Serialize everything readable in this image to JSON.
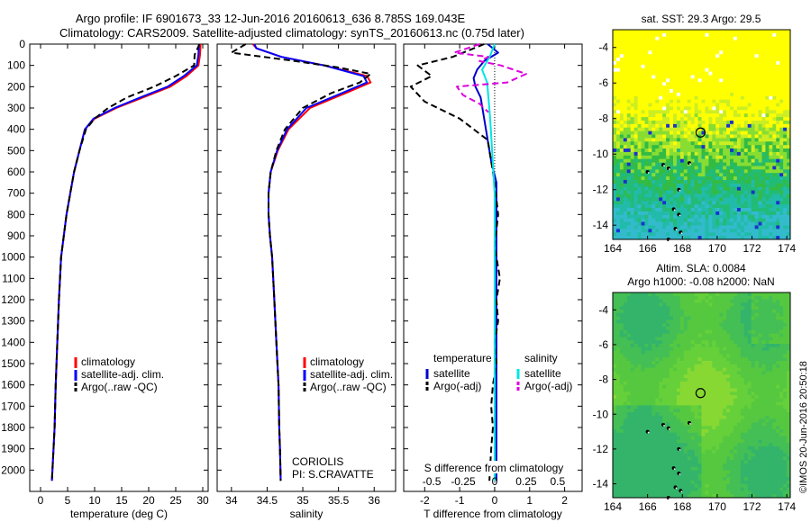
{
  "header": {
    "line1": "Argo profile: IF 6901673_33 12-Jun-2016 20160613_636 8.785S 169.043E",
    "line2": "Climatology: CARS2009. Satellite-adjusted climatology: synTS_20160613.nc (0.75d later)"
  },
  "chart_data": [
    {
      "type": "line",
      "id": "temperature",
      "xlabel": "temperature (deg C)",
      "ylabel": "",
      "xlim": [
        -2,
        31
      ],
      "ylim": [
        2100,
        0
      ],
      "xticks": [
        0,
        5,
        10,
        15,
        20,
        25,
        30
      ],
      "yticks": [
        0,
        100,
        200,
        300,
        400,
        500,
        600,
        700,
        800,
        900,
        1000,
        1100,
        1200,
        1300,
        1400,
        1500,
        1600,
        1700,
        1800,
        1900,
        2000
      ],
      "legend": [
        "climatology",
        "satellite-adj. clim.",
        "Argo(..raw -QC)"
      ],
      "series": [
        {
          "name": "climatology",
          "color": "#ff0000",
          "style": "solid",
          "x": [
            29.6,
            29.5,
            29.2,
            27.0,
            24.0,
            19.0,
            14.0,
            10.0,
            8.2,
            7.2,
            6.2,
            5.5,
            4.8,
            4.3,
            3.8,
            3.4,
            3.1,
            2.8,
            2.6,
            2.4,
            2.2,
            2.1
          ],
          "y": [
            0,
            50,
            100,
            150,
            200,
            250,
            300,
            350,
            400,
            500,
            600,
            700,
            800,
            900,
            1000,
            1200,
            1400,
            1600,
            1800,
            1900,
            2000,
            2050
          ]
        },
        {
          "name": "satellite-adj. clim.",
          "color": "#0000ff",
          "style": "solid",
          "x": [
            29.3,
            29.2,
            28.9,
            26.5,
            23.5,
            18.5,
            13.7,
            9.8,
            8.2,
            7.2,
            6.2,
            5.5,
            4.8,
            4.3,
            3.8,
            3.4,
            3.1,
            2.8,
            2.6,
            2.4,
            2.2,
            2.1
          ],
          "y": [
            0,
            50,
            100,
            150,
            200,
            250,
            300,
            350,
            400,
            500,
            600,
            700,
            800,
            900,
            1000,
            1200,
            1400,
            1600,
            1800,
            1900,
            2000,
            2050
          ]
        },
        {
          "name": "Argo(..raw -QC)",
          "color": "#000000",
          "style": "dashed",
          "x": [
            29.4,
            28.5,
            28.4,
            25.0,
            21.0,
            16.0,
            12.5,
            10.0,
            8.4,
            7.2,
            6.2,
            5.5,
            4.8,
            4.3,
            3.8,
            3.4,
            3.1,
            2.8,
            2.6,
            2.4,
            2.2,
            2.1
          ],
          "y": [
            0,
            50,
            100,
            150,
            200,
            250,
            300,
            350,
            400,
            500,
            600,
            700,
            800,
            900,
            1000,
            1200,
            1400,
            1600,
            1800,
            1900,
            2000,
            2050
          ]
        }
      ]
    },
    {
      "type": "line",
      "id": "salinity",
      "xlabel": "salinity",
      "xlim": [
        33.8,
        36.3
      ],
      "ylim": [
        2100,
        0
      ],
      "xticks": [
        34,
        34.5,
        35,
        35.5,
        36
      ],
      "xticklabels": [
        "34",
        "34.5",
        "35",
        "35.5",
        "36"
      ],
      "legend": [
        "climatology",
        "satellite-adj. clim.",
        "Argo(..raw -QC)"
      ],
      "annotation": [
        "CORIOLIS",
        "PI: S.CRAVATTE"
      ],
      "series": [
        {
          "name": "climatology",
          "color": "#ff0000",
          "style": "solid",
          "x": [
            34.3,
            34.35,
            34.7,
            35.3,
            35.9,
            35.95,
            35.6,
            35.1,
            34.8,
            34.65,
            34.55,
            34.52,
            34.52,
            34.54,
            34.57,
            34.6,
            34.63,
            34.66,
            34.67,
            34.68,
            34.69
          ],
          "y": [
            0,
            20,
            60,
            100,
            150,
            180,
            230,
            300,
            400,
            500,
            600,
            700,
            800,
            900,
            1000,
            1200,
            1400,
            1600,
            1800,
            1900,
            2050
          ]
        },
        {
          "name": "satellite-adj. clim.",
          "color": "#0000ff",
          "style": "solid",
          "x": [
            34.32,
            34.35,
            34.7,
            35.3,
            35.85,
            35.9,
            35.55,
            35.05,
            34.78,
            34.64,
            34.55,
            34.52,
            34.52,
            34.54,
            34.57,
            34.6,
            34.63,
            34.66,
            34.67,
            34.68,
            34.69
          ],
          "y": [
            0,
            20,
            60,
            100,
            150,
            180,
            230,
            300,
            400,
            500,
            600,
            700,
            800,
            900,
            1000,
            1200,
            1400,
            1600,
            1800,
            1900,
            2050
          ]
        },
        {
          "name": "Argo(..raw -QC)",
          "color": "#000000",
          "style": "dashed",
          "x": [
            34.2,
            34.0,
            34.9,
            35.5,
            35.95,
            35.8,
            35.4,
            35.0,
            34.75,
            34.63,
            34.55,
            34.52,
            34.52,
            34.54,
            34.57,
            34.6,
            34.63,
            34.66,
            34.67,
            34.68,
            34.69
          ],
          "y": [
            0,
            40,
            80,
            110,
            140,
            180,
            230,
            300,
            400,
            500,
            600,
            700,
            800,
            900,
            1000,
            1200,
            1400,
            1600,
            1800,
            1900,
            2050
          ]
        }
      ]
    },
    {
      "type": "line",
      "id": "difference",
      "xlabel": "T difference from climatology",
      "xlabel_top": "S difference from climatology",
      "xlim": [
        -2.6,
        2.5
      ],
      "ylim": [
        2100,
        0
      ],
      "xticks": [
        -2,
        -1,
        0,
        1,
        2
      ],
      "xticklabels": [
        "-2",
        "-1",
        "0",
        "1",
        "2"
      ],
      "sticks": [
        -0.5,
        -0.25,
        0,
        0.25,
        0.5
      ],
      "sticklabels": [
        "-0.5",
        "-0.25",
        "0",
        "0.25",
        "0.5"
      ],
      "legend_headers": [
        "temperature",
        "salinity"
      ],
      "legend": [
        "satellite",
        "Argo(-adj)",
        "satellite",
        "Argo(-adj)"
      ],
      "series": [
        {
          "name": "satellite",
          "quantity": "temperature",
          "color": "#0000cc",
          "style": "solid",
          "x": [
            -0.2,
            0.1,
            -0.3,
            -0.5,
            -0.6,
            -0.55,
            -0.4,
            -0.3,
            -0.2,
            -0.1,
            0.05,
            0.05,
            0.05,
            0.05,
            0.05,
            0.05,
            0.05,
            0.05,
            0.05,
            0.05
          ],
          "y": [
            0,
            40,
            80,
            120,
            160,
            200,
            250,
            350,
            450,
            550,
            650,
            800,
            1000,
            1200,
            1400,
            1600,
            1800,
            1900,
            2000,
            2050
          ]
        },
        {
          "name": "Argo(-adj)",
          "quantity": "temperature",
          "color": "#000000",
          "style": "dashed",
          "x": [
            -0.3,
            -1.2,
            -2.2,
            -1.8,
            -2.4,
            -2.0,
            -1.0,
            -0.2,
            -0.1,
            0.0,
            0.1,
            0.0,
            0.15,
            0.05,
            0.1,
            0.0,
            0.05,
            -0.05,
            -0.1,
            -0.05,
            -0.1,
            -0.15
          ],
          "y": [
            0,
            60,
            100,
            150,
            200,
            270,
            350,
            450,
            550,
            650,
            800,
            950,
            1100,
            1200,
            1300,
            1400,
            1500,
            1600,
            1700,
            1800,
            1900,
            2050
          ]
        },
        {
          "name": "satellite",
          "quantity": "salinity",
          "color": "#00e5e5",
          "style": "solid",
          "x": [
            0.0,
            -0.04,
            -0.1,
            -0.06,
            -0.05,
            -0.04,
            -0.03,
            -0.02,
            -0.01,
            0.0,
            0.0,
            0.0,
            0.0,
            0.0,
            0.0,
            0.0,
            0.0,
            0.0
          ],
          "y": [
            0,
            60,
            120,
            180,
            250,
            320,
            400,
            500,
            600,
            700,
            900,
            1100,
            1300,
            1500,
            1700,
            1900,
            2000,
            2050
          ]
        },
        {
          "name": "Argo(-adj)",
          "quantity": "salinity",
          "color": "#dd00dd",
          "style": "dashed",
          "x": [
            -0.12,
            -0.32,
            -0.05,
            -0.12,
            0.05,
            0.25,
            0.1,
            -0.3,
            -0.25,
            -0.12,
            -0.05
          ],
          "y": [
            0,
            40,
            60,
            80,
            100,
            140,
            180,
            200,
            240,
            280,
            320
          ]
        }
      ]
    },
    {
      "type": "heatmap",
      "id": "sst-map",
      "title": "sat. SST: 29.3  Argo: 29.5",
      "xlim": [
        164,
        174.2
      ],
      "ylim": [
        -14.8,
        -3
      ],
      "xticks": [
        164,
        166,
        168,
        170,
        172,
        174
      ],
      "yticks": [
        -4,
        -6,
        -8,
        -10,
        -12,
        -14
      ],
      "marker": {
        "lon": 169.043,
        "lat": -8.785
      }
    },
    {
      "type": "heatmap",
      "id": "sla-map",
      "title_line1": "Altim. SLA: 0.0084",
      "title_line2": "Argo h1000: -0.08 h2000: NaN",
      "xlim": [
        164,
        174.2
      ],
      "ylim": [
        -14.8,
        -3
      ],
      "xticks": [
        164,
        166,
        168,
        170,
        172,
        174
      ],
      "yticks": [
        -4,
        -6,
        -8,
        -10,
        -12,
        -14
      ],
      "marker": {
        "lon": 169.043,
        "lat": -8.785
      }
    }
  ],
  "side_text": "©IMOS 20-Jun-2016 20:50:18"
}
